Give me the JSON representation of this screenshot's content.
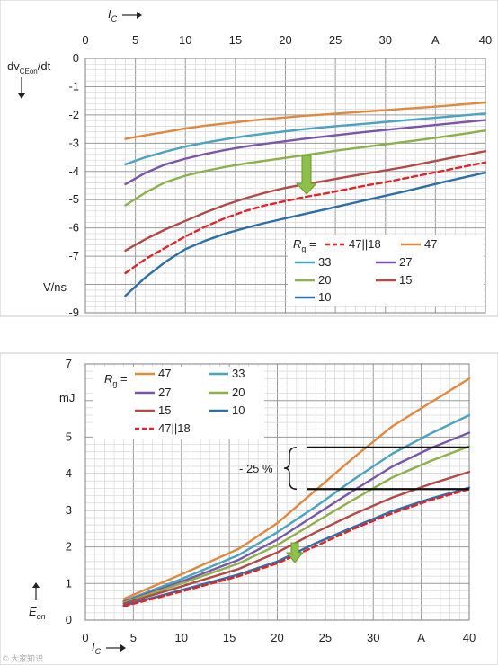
{
  "colors": {
    "r47": "#e0893e",
    "r33": "#4aa3bf",
    "r27": "#7a56a8",
    "r20": "#8db04c",
    "r15": "#b14a47",
    "r10": "#2f6fa6",
    "r47p18": "#e0242a",
    "arrow": "#8fbf4b"
  },
  "watermark": "© 大家知识",
  "chart_data": [
    {
      "type": "line",
      "title": "",
      "xlabel_main": "I",
      "xlabel_sub": "C",
      "ylabel_main": "dv",
      "ylabel_sub": "CEon",
      "ylabel_tail": "/dt",
      "y_unit": "V/ns",
      "x_unit_label": "A",
      "x_ticks": [
        "0",
        "5",
        "10",
        "15",
        "20",
        "25",
        "30",
        "A",
        "40"
      ],
      "y_ticks": [
        "0",
        "-1",
        "-2",
        "-3",
        "-4",
        "-5",
        "-6",
        "-7",
        "",
        "-9"
      ],
      "xlim": [
        0,
        40
      ],
      "ylim": [
        -9,
        0
      ],
      "grid": true,
      "legend_placement": "bottom-right",
      "legend_title": "R",
      "legend_title_sub": "g",
      "legend_title_tail": " =",
      "series": [
        {
          "name": "47||18",
          "color_key": "r47p18",
          "dashed": true,
          "x": [
            4,
            6,
            8,
            10,
            12,
            14,
            16,
            18,
            20,
            22,
            24,
            26,
            28,
            30,
            32,
            34,
            36,
            38,
            40
          ],
          "y": [
            -7.6,
            -7.1,
            -6.7,
            -6.3,
            -5.95,
            -5.65,
            -5.4,
            -5.2,
            -5.05,
            -4.9,
            -4.78,
            -4.64,
            -4.5,
            -4.38,
            -4.24,
            -4.1,
            -3.96,
            -3.82,
            -3.68
          ]
        },
        {
          "name": "47",
          "color_key": "r47",
          "x": [
            4,
            6,
            8,
            10,
            12,
            14,
            16,
            18,
            20,
            22,
            24,
            26,
            28,
            30,
            32,
            34,
            36,
            38,
            40
          ],
          "y": [
            -2.85,
            -2.72,
            -2.6,
            -2.48,
            -2.38,
            -2.3,
            -2.22,
            -2.15,
            -2.09,
            -2.03,
            -1.98,
            -1.93,
            -1.88,
            -1.83,
            -1.78,
            -1.73,
            -1.68,
            -1.62,
            -1.56
          ]
        },
        {
          "name": "33",
          "color_key": "r33",
          "x": [
            4,
            6,
            8,
            10,
            12,
            14,
            16,
            18,
            20,
            22,
            24,
            26,
            28,
            30,
            32,
            34,
            36,
            38,
            40
          ],
          "y": [
            -3.75,
            -3.5,
            -3.3,
            -3.12,
            -2.98,
            -2.86,
            -2.75,
            -2.66,
            -2.58,
            -2.5,
            -2.43,
            -2.37,
            -2.31,
            -2.25,
            -2.19,
            -2.13,
            -2.07,
            -2.01,
            -1.95
          ]
        },
        {
          "name": "27",
          "color_key": "r27",
          "x": [
            4,
            6,
            8,
            10,
            12,
            14,
            16,
            18,
            20,
            22,
            24,
            26,
            28,
            30,
            32,
            34,
            36,
            38,
            40
          ],
          "y": [
            -4.45,
            -4.05,
            -3.75,
            -3.55,
            -3.38,
            -3.24,
            -3.12,
            -3.02,
            -2.93,
            -2.84,
            -2.76,
            -2.68,
            -2.6,
            -2.53,
            -2.46,
            -2.39,
            -2.32,
            -2.25,
            -2.18
          ]
        },
        {
          "name": "20",
          "color_key": "r20",
          "x": [
            4,
            6,
            8,
            10,
            12,
            14,
            16,
            18,
            20,
            22,
            24,
            26,
            28,
            30,
            32,
            34,
            36,
            38,
            40
          ],
          "y": [
            -5.2,
            -4.75,
            -4.38,
            -4.15,
            -3.98,
            -3.84,
            -3.72,
            -3.62,
            -3.52,
            -3.42,
            -3.32,
            -3.22,
            -3.13,
            -3.04,
            -2.95,
            -2.86,
            -2.76,
            -2.66,
            -2.55
          ]
        },
        {
          "name": "15",
          "color_key": "r15",
          "x": [
            4,
            6,
            8,
            10,
            12,
            14,
            16,
            18,
            20,
            22,
            24,
            26,
            28,
            30,
            32,
            34,
            36,
            38,
            40
          ],
          "y": [
            -6.8,
            -6.4,
            -6.05,
            -5.75,
            -5.45,
            -5.18,
            -4.95,
            -4.75,
            -4.58,
            -4.45,
            -4.33,
            -4.2,
            -4.08,
            -3.96,
            -3.84,
            -3.7,
            -3.56,
            -3.42,
            -3.28
          ]
        },
        {
          "name": "10",
          "color_key": "r10",
          "x": [
            4,
            6,
            8,
            10,
            12,
            14,
            16,
            18,
            20,
            22,
            24,
            26,
            28,
            30,
            32,
            34,
            36,
            38,
            40
          ],
          "y": [
            -8.4,
            -7.75,
            -7.2,
            -6.75,
            -6.45,
            -6.2,
            -6.0,
            -5.82,
            -5.66,
            -5.5,
            -5.34,
            -5.18,
            -5.02,
            -4.86,
            -4.7,
            -4.53,
            -4.36,
            -4.2,
            -4.04
          ]
        }
      ],
      "legend_order": [
        "47||18",
        "47",
        "33",
        "27",
        "20",
        "15",
        "10"
      ]
    },
    {
      "type": "line",
      "title": "",
      "xlabel_main": "I",
      "xlabel_sub": "C",
      "ylabel_main": "E",
      "ylabel_sub": "on",
      "y_unit": "mJ",
      "x_unit_label": "A",
      "x_ticks": [
        "0",
        "5",
        "10",
        "15",
        "20",
        "25",
        "30",
        "A",
        "40"
      ],
      "y_ticks": [
        "0",
        "1",
        "2",
        "3",
        "4",
        "5",
        "",
        "7"
      ],
      "xlim": [
        0,
        40
      ],
      "ylim": [
        0,
        7
      ],
      "grid": true,
      "legend_placement": "top-left",
      "legend_title": "R",
      "legend_title_sub": "g",
      "legend_title_tail": " =",
      "annotation": "- 25 %",
      "bracket_levels": [
        4.72,
        3.58
      ],
      "series": [
        {
          "name": "47",
          "color_key": "r47",
          "x": [
            4,
            10,
            16,
            20,
            24,
            28,
            32,
            36,
            40
          ],
          "y": [
            0.58,
            1.25,
            1.95,
            2.65,
            3.55,
            4.45,
            5.3,
            5.95,
            6.6
          ]
        },
        {
          "name": "33",
          "color_key": "r33",
          "x": [
            4,
            10,
            16,
            20,
            24,
            28,
            32,
            36,
            40
          ],
          "y": [
            0.52,
            1.12,
            1.78,
            2.4,
            3.1,
            3.85,
            4.55,
            5.1,
            5.6
          ]
        },
        {
          "name": "27",
          "color_key": "r27",
          "x": [
            4,
            10,
            16,
            20,
            24,
            28,
            32,
            36,
            40
          ],
          "y": [
            0.5,
            1.05,
            1.65,
            2.2,
            2.88,
            3.55,
            4.2,
            4.7,
            5.12
          ]
        },
        {
          "name": "20",
          "color_key": "r20",
          "x": [
            4,
            10,
            16,
            20,
            24,
            28,
            32,
            36,
            40
          ],
          "y": [
            0.48,
            1.0,
            1.55,
            2.05,
            2.68,
            3.3,
            3.9,
            4.35,
            4.75
          ]
        },
        {
          "name": "15",
          "color_key": "r15",
          "x": [
            4,
            10,
            16,
            20,
            24,
            28,
            32,
            36,
            40
          ],
          "y": [
            0.45,
            0.92,
            1.4,
            1.85,
            2.4,
            2.9,
            3.35,
            3.72,
            4.05
          ]
        },
        {
          "name": "10",
          "color_key": "r10",
          "x": [
            4,
            10,
            16,
            20,
            24,
            28,
            32,
            36,
            40
          ],
          "y": [
            0.4,
            0.82,
            1.25,
            1.6,
            2.1,
            2.55,
            2.98,
            3.32,
            3.62
          ]
        },
        {
          "name": "47||18",
          "color_key": "r47p18",
          "dashed": true,
          "x": [
            4,
            10,
            16,
            20,
            24,
            28,
            32,
            36,
            40
          ],
          "y": [
            0.38,
            0.78,
            1.2,
            1.55,
            2.02,
            2.5,
            2.92,
            3.28,
            3.58
          ]
        }
      ],
      "legend_order": [
        "47",
        "33",
        "27",
        "20",
        "15",
        "10",
        "47||18"
      ]
    }
  ]
}
